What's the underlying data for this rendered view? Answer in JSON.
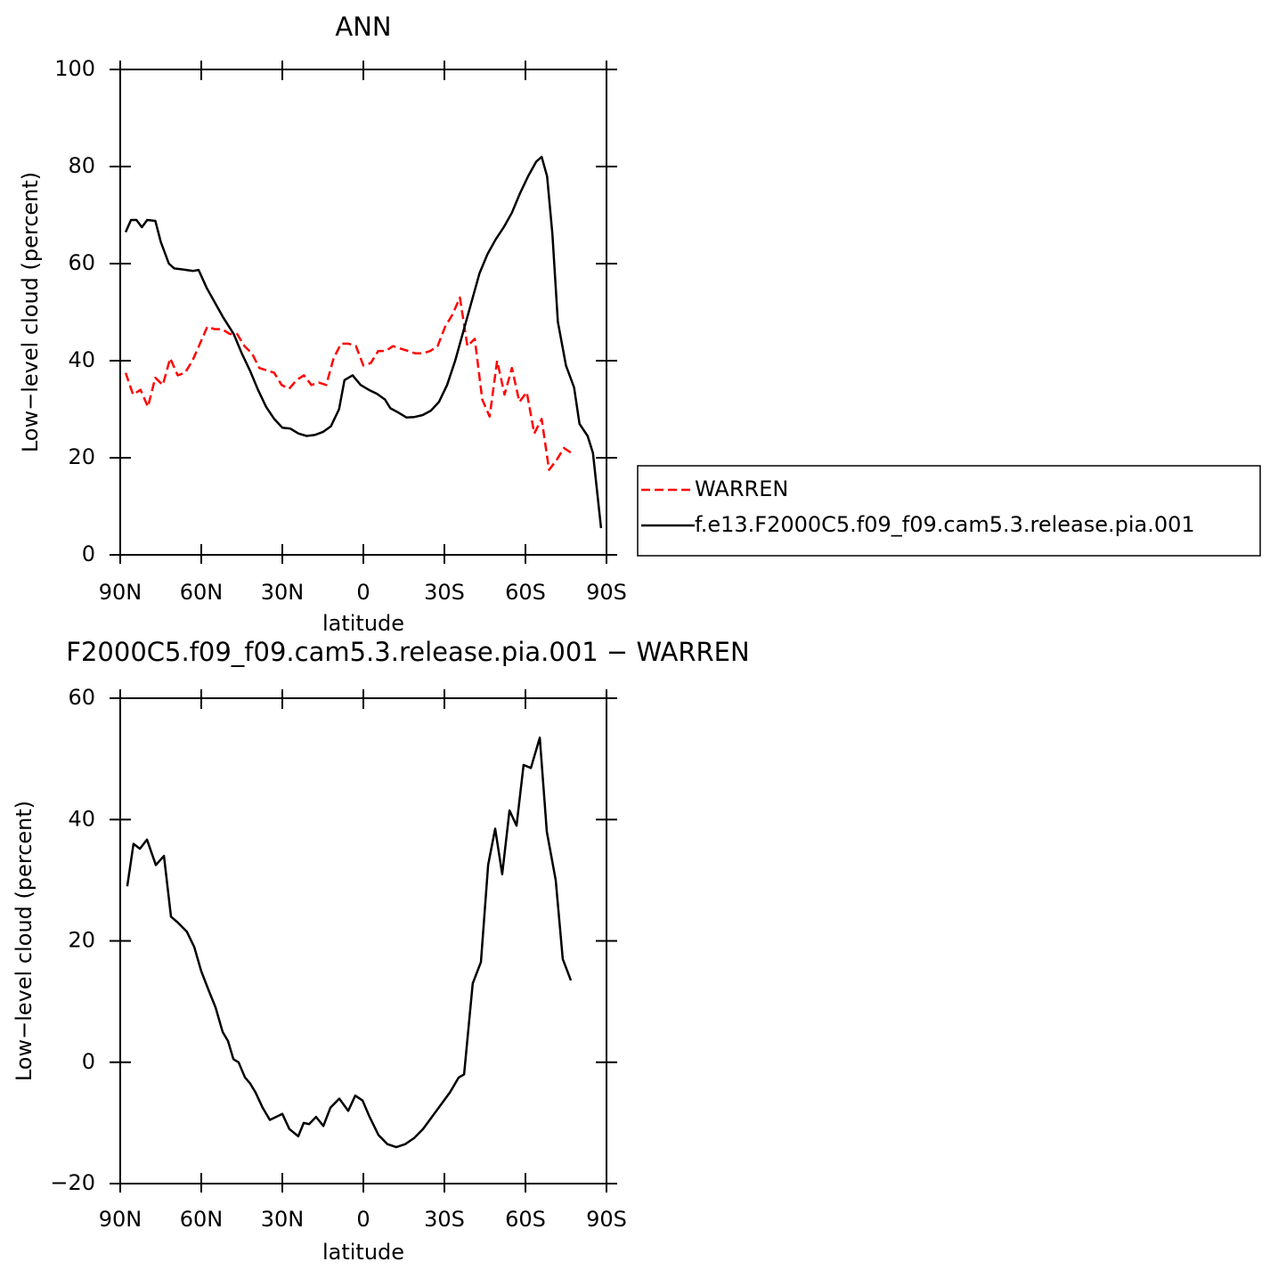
{
  "chart_data": [
    {
      "type": "line",
      "title": "ANN",
      "xlabel": "latitude",
      "ylabel": "Low−level cloud (percent)",
      "xlim": [
        90,
        -90
      ],
      "xticks": [
        {
          "value": 90,
          "label": "90N"
        },
        {
          "value": 60,
          "label": "60N"
        },
        {
          "value": 30,
          "label": "30N"
        },
        0,
        {
          "value": -30,
          "label": "30S"
        },
        {
          "value": -60,
          "label": "60S"
        },
        {
          "value": -90,
          "label": "90S"
        }
      ],
      "ylim": [
        0,
        100
      ],
      "yticks": [
        0,
        20,
        40,
        60,
        80,
        100
      ],
      "legend": "outside-right",
      "series": [
        {
          "name": "WARREN",
          "color": "#ff0000",
          "line_style": "dashed",
          "x": [
            88,
            85.25,
            82.5,
            79.75,
            77,
            74.25,
            71.5,
            68.75,
            66,
            63.25,
            60.5,
            57.75,
            55,
            52.25,
            49.5,
            46.75,
            44,
            41.25,
            38.5,
            35.75,
            33,
            30.25,
            27.5,
            24.75,
            22,
            19.25,
            16.5,
            13.75,
            11,
            8.25,
            5.5,
            2.75,
            0,
            -2.75,
            -5.5,
            -8.25,
            -11,
            -13.75,
            -16.5,
            -19.25,
            -22,
            -24.75,
            -27.5,
            -30.25,
            -33,
            -35.75,
            -38.5,
            -41.25,
            -44,
            -46.75,
            -49.5,
            -52.25,
            -55,
            -57.75,
            -60.5,
            -63.25,
            -66,
            -68.75,
            -71.5,
            -74.25,
            -77
          ],
          "values": [
            37.5,
            33,
            34,
            30.5,
            36.5,
            35,
            40.5,
            37,
            37.5,
            40,
            43.5,
            47,
            46.5,
            46.5,
            45.5,
            45.5,
            43,
            41.5,
            38.5,
            38,
            37.5,
            35,
            34.2,
            36,
            37,
            35,
            35.5,
            35,
            40.5,
            43.5,
            43.5,
            43,
            39,
            39.5,
            42,
            42,
            43,
            42.5,
            42,
            41.5,
            41.5,
            42,
            43,
            47,
            49.5,
            53,
            43,
            44.5,
            32,
            28.5,
            40,
            33,
            38.5,
            31.5,
            33.5,
            25,
            28,
            17.5,
            19.5,
            22,
            21
          ]
        },
        {
          "name": "f.e13.F2000C5.f09_f09.cam5.3.release.pia.001",
          "color": "#000000",
          "line_style": "solid",
          "x": [
            88,
            86,
            84,
            82,
            80,
            77,
            75,
            72,
            70,
            67,
            63,
            61,
            58,
            55,
            52,
            48,
            45,
            42,
            39,
            36,
            33,
            30,
            27,
            24,
            21,
            18,
            15,
            12,
            9,
            7,
            4,
            1,
            -2,
            -5,
            -8,
            -10,
            -13,
            -16,
            -19,
            -22,
            -25,
            -28,
            -31,
            -34,
            -37,
            -40,
            -43,
            -46,
            -49,
            -52,
            -55,
            -58,
            -61,
            -64,
            -66,
            -68,
            -70,
            -72,
            -75,
            -78,
            -80,
            -83,
            -85,
            -88
          ],
          "values": [
            66.5,
            69,
            69,
            67.5,
            69,
            68.8,
            64.5,
            60,
            59,
            58.8,
            58.5,
            58.7,
            55,
            52,
            49,
            45.5,
            41.5,
            38,
            34,
            30.5,
            28,
            26.2,
            26,
            25,
            24.5,
            24.7,
            25.3,
            26.5,
            30,
            36,
            37,
            35,
            34,
            33.2,
            32,
            30.2,
            29.3,
            28.3,
            28.4,
            28.8,
            29.7,
            31.5,
            35,
            40,
            46,
            52,
            58,
            62,
            65,
            67.5,
            70.5,
            74.5,
            78,
            81,
            82,
            78,
            66,
            48,
            39,
            34.5,
            27,
            24.5,
            21,
            5.5
          ]
        }
      ]
    },
    {
      "type": "line",
      "title": "F2000C5.f09_f09.cam5.3.release.pia.001 − WARREN",
      "xlabel": "latitude",
      "ylabel": "Low−level cloud (percent)",
      "xlim": [
        90,
        -90
      ],
      "xticks": [
        {
          "value": 90,
          "label": "90N"
        },
        {
          "value": 60,
          "label": "60N"
        },
        {
          "value": 30,
          "label": "30N"
        },
        0,
        {
          "value": -30,
          "label": "30S"
        },
        {
          "value": -60,
          "label": "60S"
        },
        {
          "value": -90,
          "label": "90S"
        }
      ],
      "ylim": [
        -20,
        60
      ],
      "yticks": [
        {
          "value": -20,
          "label": "−20"
        },
        0,
        20,
        40,
        60
      ],
      "series": [
        {
          "color": "#000000",
          "line_style": "solid",
          "x": [
            87.4,
            85.1,
            82.7,
            80.1,
            76.8,
            73.8,
            71.2,
            68.6,
            65.3,
            62.6,
            60,
            57.4,
            54.7,
            52.1,
            50.1,
            48.1,
            46.2,
            43.8,
            41.9,
            39.9,
            37.3,
            34.6,
            32.3,
            30,
            27.4,
            24.1,
            22.1,
            20.1,
            17.5,
            14.8,
            12.2,
            8.9,
            5.6,
            3,
            0.3,
            -2.3,
            -5.6,
            -8.9,
            -12.2,
            -15.5,
            -18.8,
            -22.1,
            -25.4,
            -28.7,
            -32,
            -35.3,
            -37.3,
            -40.5,
            -43.5,
            -46.2,
            -48.8,
            -51.4,
            -54.1,
            -56.7,
            -59.3,
            -62,
            -65.3,
            -67.9,
            -71.2,
            -73.8,
            -76.8
          ],
          "values": [
            29,
            36,
            35.2,
            36.7,
            32.5,
            34,
            24,
            23,
            21.5,
            19,
            15,
            12,
            9,
            5,
            3.5,
            0.5,
            0,
            -2.5,
            -3.5,
            -5,
            -7.5,
            -9.5,
            -9,
            -8.5,
            -11,
            -12.2,
            -10,
            -10.2,
            -9,
            -10.5,
            -7.5,
            -6,
            -8,
            -5.5,
            -6.3,
            -9,
            -12,
            -13.5,
            -14,
            -13.5,
            -12.5,
            -11,
            -9,
            -7,
            -5,
            -2.5,
            -2,
            13,
            16.5,
            32.5,
            38.5,
            31,
            41.5,
            39,
            49,
            48.5,
            53.5,
            38,
            30,
            17,
            13.5
          ]
        }
      ]
    }
  ]
}
